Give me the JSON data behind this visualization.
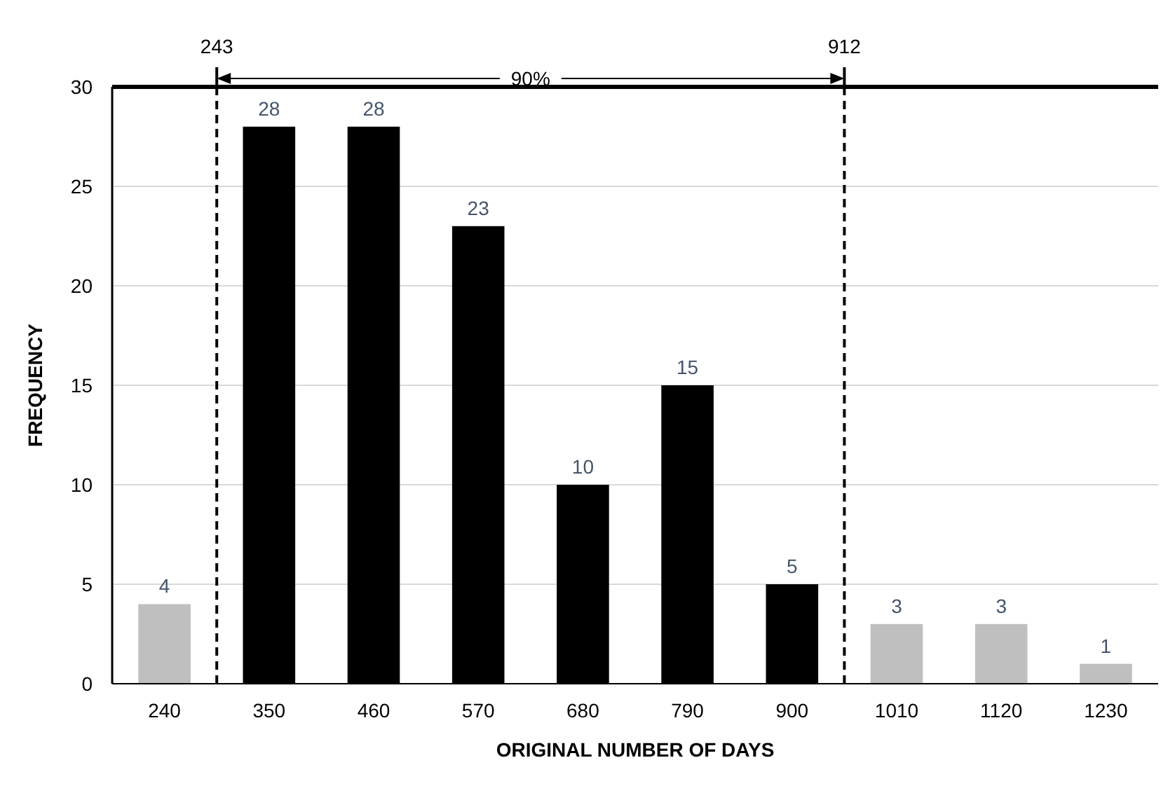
{
  "chart_data": {
    "type": "bar",
    "xlabel": "ORIGINAL NUMBER OF DAYS",
    "ylabel": "FREQUENCY",
    "categories": [
      "240",
      "350",
      "460",
      "570",
      "680",
      "790",
      "900",
      "1010",
      "1120",
      "1230"
    ],
    "values": [
      4,
      28,
      28,
      23,
      10,
      15,
      5,
      3,
      3,
      1
    ],
    "colors": [
      "#bfbfbf",
      "#000000",
      "#000000",
      "#000000",
      "#000000",
      "#000000",
      "#000000",
      "#bfbfbf",
      "#bfbfbf",
      "#bfbfbf"
    ],
    "ylim": [
      0,
      30
    ],
    "yticks": [
      0,
      5,
      10,
      15,
      20,
      25,
      30
    ],
    "grid": "y",
    "data_labels": true,
    "annotations": [
      "243",
      "912",
      "90%"
    ]
  }
}
